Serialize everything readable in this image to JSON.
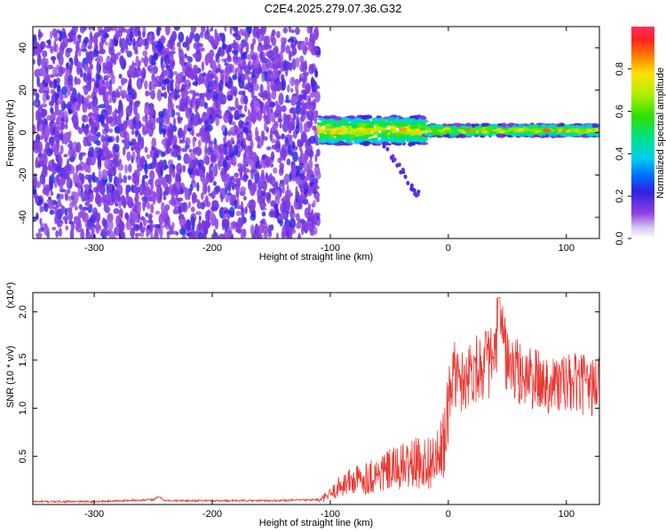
{
  "title": "C2E4.2025.279.07.36.G32",
  "colors": {
    "snr_line": "#e83a35",
    "axis": "#000000",
    "background": "#ffffff"
  },
  "chart_data": [
    {
      "type": "heatmap",
      "name": "spectrogram",
      "xlabel": "Height of straight line (km)",
      "ylabel": "Frequency (Hz)",
      "xlim": [
        -352,
        128
      ],
      "ylim": [
        -50,
        50
      ],
      "xticks": [
        -300,
        -200,
        -100,
        0,
        100
      ],
      "xtick_labels": [
        "-300",
        "-200",
        "-100",
        "0",
        "100"
      ],
      "yticks": [
        -40,
        -20,
        0,
        20,
        40
      ],
      "ytick_labels": [
        "-40",
        "-20",
        "0",
        "20",
        "40"
      ],
      "colorbar": {
        "label": "Normalized spectral amplitude",
        "range": [
          0,
          1
        ],
        "ticks": [
          0.0,
          0.2,
          0.4,
          0.6,
          0.8
        ],
        "tick_labels": [
          "0.0",
          "0.2",
          "0.4",
          "0.6",
          "0.8"
        ],
        "colormap": "rainbow"
      },
      "regions": [
        {
          "description": "broadband noise",
          "x_range": [
            -352,
            -110
          ],
          "y_range": [
            -50,
            50
          ],
          "amplitude": [
            0.1,
            0.25
          ]
        },
        {
          "description": "narrowband signal",
          "x_range": [
            -110,
            128
          ],
          "center_freq": 1,
          "bandwidth": 6,
          "amplitude": [
            0.3,
            0.9
          ]
        },
        {
          "description": "weak tail",
          "x_range": [
            -55,
            -25
          ],
          "freq_range": [
            -30,
            -5
          ],
          "amplitude": [
            0.15,
            0.2
          ]
        }
      ]
    },
    {
      "type": "line",
      "name": "snr",
      "xlabel": "Height of straight line (km)",
      "ylabel": "SNR (10 * v/v)",
      "scale_label": "(x10⁴)",
      "xlim": [
        -352,
        128
      ],
      "ylim": [
        0,
        2.2
      ],
      "xticks": [
        -300,
        -200,
        -100,
        0,
        100
      ],
      "xtick_labels": [
        "-300",
        "-200",
        "-100",
        "0",
        "100"
      ],
      "yticks": [
        0.5,
        1.0,
        1.5,
        2.0
      ],
      "ytick_labels": [
        "0.5",
        "1.0",
        "1.5",
        "2.0"
      ],
      "series": [
        {
          "name": "SNR",
          "x": [
            -352,
            -300,
            -250,
            -245,
            -240,
            -200,
            -150,
            -110,
            -100,
            -90,
            -80,
            -70,
            -60,
            -50,
            -40,
            -30,
            -20,
            -10,
            -5,
            0,
            5,
            10,
            20,
            30,
            40,
            43,
            50,
            60,
            70,
            80,
            90,
            100,
            110,
            120,
            128
          ],
          "y": [
            0.03,
            0.03,
            0.05,
            0.08,
            0.04,
            0.04,
            0.04,
            0.05,
            0.15,
            0.3,
            0.35,
            0.4,
            0.45,
            0.5,
            0.55,
            0.6,
            0.62,
            0.65,
            0.8,
            1.2,
            1.4,
            1.3,
            1.45,
            1.5,
            1.55,
            2.15,
            1.5,
            1.4,
            1.35,
            1.3,
            1.3,
            1.28,
            1.3,
            1.25,
            1.3
          ]
        }
      ]
    }
  ]
}
